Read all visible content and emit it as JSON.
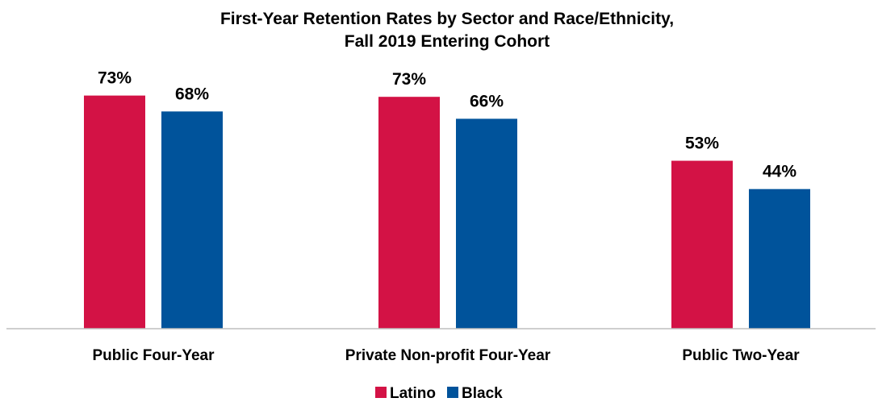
{
  "colors": {
    "latino": "#D31245",
    "black": "#00539B",
    "axis": "#BFBFBF"
  },
  "chart_data": {
    "type": "bar",
    "title": "First-Year Retention Rates by Sector and Race/Ethnicity, Fall 2019 Entering Cohort",
    "title_lines": [
      "First-Year Retention Rates by Sector and Race/Ethnicity,",
      "Fall 2019 Entering Cohort"
    ],
    "xlabel": "",
    "ylabel": "",
    "ylim": [
      0,
      80
    ],
    "grid": false,
    "legend_position": "bottom",
    "categories": [
      "Public Four-Year",
      "Private Non-profit Four-Year",
      "Public Two-Year"
    ],
    "series": [
      {
        "name": "Latino",
        "values": [
          73.3,
          72.9,
          52.8
        ],
        "labels": [
          "73%",
          "73%",
          "53%"
        ],
        "color": "#D31245"
      },
      {
        "name": "Black",
        "values": [
          68.3,
          66.0,
          43.9
        ],
        "labels": [
          "68%",
          "66%",
          "44%"
        ],
        "color": "#00539B"
      }
    ]
  }
}
